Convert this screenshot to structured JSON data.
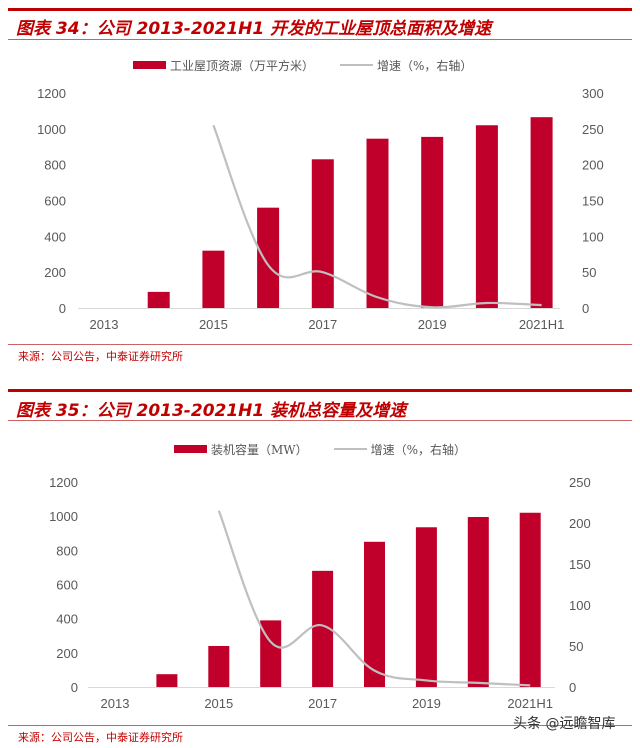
{
  "figures": [
    {
      "title": "图表 34：公司 2013-2021H1 开发的工业屋顶总面积及增速",
      "legend": {
        "bar_label": "工业屋顶资源（万平方米）",
        "line_label": "增速（%，右轴）"
      },
      "source": "来源：公司公告，中泰证券研究所"
    },
    {
      "title": "图表 35：公司 2013-2021H1 装机总容量及增速",
      "legend": {
        "bar_label": "装机容量（MW）",
        "line_label": "增速（%，右轴）"
      },
      "source": "来源：公司公告，中泰证券研究所"
    }
  ],
  "watermark": "头条 @远瞻智库",
  "colors": {
    "bar": "#c0002a",
    "line": "#bfbfbf",
    "title_red": "#c00000",
    "axis_text": "#595959"
  },
  "chart_data": [
    {
      "type": "bar",
      "title": "公司 2013-2021H1 开发的工业屋顶总面积及增速",
      "categories": [
        "2013",
        "2014",
        "2015",
        "2016",
        "2017",
        "2018",
        "2019",
        "2020",
        "2021H1"
      ],
      "x_tick_labels": [
        "2013",
        "2015",
        "2017",
        "2019",
        "2021H1"
      ],
      "series": [
        {
          "name": "工业屋顶资源（万平方米）",
          "type": "bar",
          "axis": "left",
          "values": [
            0,
            90,
            320,
            560,
            830,
            945,
            955,
            1020,
            1065
          ]
        },
        {
          "name": "增速（%，右轴）",
          "type": "line",
          "axis": "right",
          "values": [
            null,
            null,
            255,
            60,
            50,
            15,
            1,
            7,
            4
          ]
        }
      ],
      "left_axis": {
        "ylim": [
          0,
          1200
        ],
        "ticks": [
          "0",
          "200",
          "400",
          "600",
          "800",
          "1000",
          "1200"
        ]
      },
      "right_axis": {
        "ylim": [
          0,
          300
        ],
        "ticks": [
          "0",
          "50",
          "100",
          "150",
          "200",
          "250",
          "300"
        ]
      },
      "grid": false,
      "legend_position": "top"
    },
    {
      "type": "bar",
      "title": "公司 2013-2021H1 装机总容量及增速",
      "categories": [
        "2013",
        "2014",
        "2015",
        "2016",
        "2017",
        "2018",
        "2019",
        "2020",
        "2021H1"
      ],
      "x_tick_labels": [
        "2013",
        "2015",
        "2017",
        "2019",
        "2021H1"
      ],
      "series": [
        {
          "name": "装机容量（MW）",
          "type": "bar",
          "axis": "left",
          "values": [
            0,
            75,
            240,
            390,
            680,
            850,
            935,
            995,
            1020
          ]
        },
        {
          "name": "增速（%，右轴）",
          "type": "line",
          "axis": "right",
          "values": [
            null,
            null,
            215,
            55,
            75,
            20,
            8,
            5,
            2
          ]
        }
      ],
      "left_axis": {
        "ylim": [
          0,
          1200
        ],
        "ticks": [
          "0",
          "200",
          "400",
          "600",
          "800",
          "1000",
          "1200"
        ]
      },
      "right_axis": {
        "ylim": [
          0,
          250
        ],
        "ticks": [
          "0",
          "50",
          "100",
          "150",
          "200",
          "250"
        ]
      },
      "grid": false,
      "legend_position": "top"
    }
  ]
}
